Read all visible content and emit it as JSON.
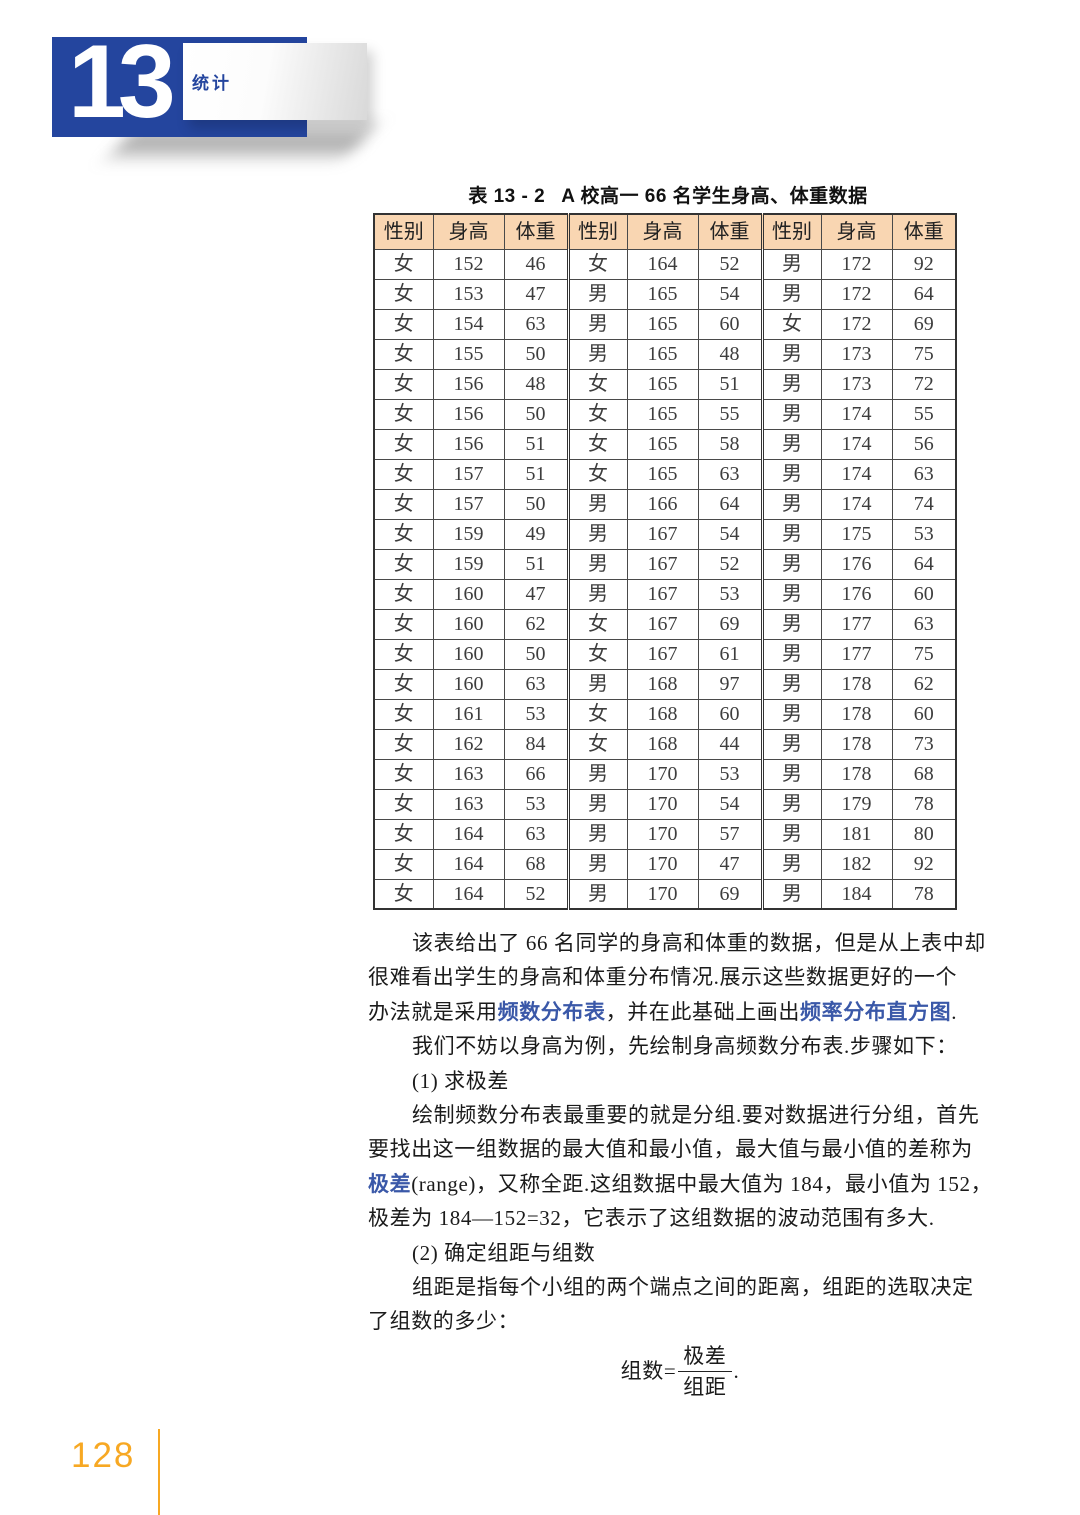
{
  "page": {
    "chapter_number": "13",
    "chapter_title": "统计",
    "page_number": "128"
  },
  "colors": {
    "banner_blue": "#24459e",
    "keyword_blue": "#3a58a8",
    "table_header_peach": "#f9d6b2",
    "footer_orange": "#f7a823"
  },
  "table": {
    "caption_label": "表 13 - 2",
    "caption_title": "A 校高一 66 名学生身高、体重数据",
    "column_headers": [
      "性别",
      "身高",
      "体重",
      "性别",
      "身高",
      "体重",
      "性别",
      "身高",
      "体重"
    ],
    "rows": [
      [
        "女",
        "152",
        "46",
        "女",
        "164",
        "52",
        "男",
        "172",
        "92"
      ],
      [
        "女",
        "153",
        "47",
        "男",
        "165",
        "54",
        "男",
        "172",
        "64"
      ],
      [
        "女",
        "154",
        "63",
        "男",
        "165",
        "60",
        "女",
        "172",
        "69"
      ],
      [
        "女",
        "155",
        "50",
        "男",
        "165",
        "48",
        "男",
        "173",
        "75"
      ],
      [
        "女",
        "156",
        "48",
        "女",
        "165",
        "51",
        "男",
        "173",
        "72"
      ],
      [
        "女",
        "156",
        "50",
        "女",
        "165",
        "55",
        "男",
        "174",
        "55"
      ],
      [
        "女",
        "156",
        "51",
        "女",
        "165",
        "58",
        "男",
        "174",
        "56"
      ],
      [
        "女",
        "157",
        "51",
        "女",
        "165",
        "63",
        "男",
        "174",
        "63"
      ],
      [
        "女",
        "157",
        "50",
        "男",
        "166",
        "64",
        "男",
        "174",
        "74"
      ],
      [
        "女",
        "159",
        "49",
        "男",
        "167",
        "54",
        "男",
        "175",
        "53"
      ],
      [
        "女",
        "159",
        "51",
        "男",
        "167",
        "52",
        "男",
        "176",
        "64"
      ],
      [
        "女",
        "160",
        "47",
        "男",
        "167",
        "53",
        "男",
        "176",
        "60"
      ],
      [
        "女",
        "160",
        "62",
        "女",
        "167",
        "69",
        "男",
        "177",
        "63"
      ],
      [
        "女",
        "160",
        "50",
        "女",
        "167",
        "61",
        "男",
        "177",
        "75"
      ],
      [
        "女",
        "160",
        "63",
        "男",
        "168",
        "97",
        "男",
        "178",
        "62"
      ],
      [
        "女",
        "161",
        "53",
        "女",
        "168",
        "60",
        "男",
        "178",
        "60"
      ],
      [
        "女",
        "162",
        "84",
        "女",
        "168",
        "44",
        "男",
        "178",
        "73"
      ],
      [
        "女",
        "163",
        "66",
        "男",
        "170",
        "53",
        "男",
        "178",
        "68"
      ],
      [
        "女",
        "163",
        "53",
        "男",
        "170",
        "54",
        "男",
        "179",
        "78"
      ],
      [
        "女",
        "164",
        "63",
        "男",
        "170",
        "57",
        "男",
        "181",
        "80"
      ],
      [
        "女",
        "164",
        "68",
        "男",
        "170",
        "47",
        "男",
        "182",
        "92"
      ],
      [
        "女",
        "164",
        "52",
        "男",
        "170",
        "69",
        "男",
        "184",
        "78"
      ]
    ]
  },
  "content": {
    "lines": [
      {
        "indent": true,
        "segments": [
          {
            "text": "该表给出了 66 名同学的身高和体重的数据，但是从上表中却"
          }
        ]
      },
      {
        "indent": false,
        "segments": [
          {
            "text": "很难看出学生的身高和体重分布情况.展示这些数据更好的一个"
          }
        ]
      },
      {
        "indent": false,
        "segments": [
          {
            "text": "办法就是采用"
          },
          {
            "text": "频数分布表",
            "blue": true
          },
          {
            "text": "，并在此基础上画出"
          },
          {
            "text": "频率分布直方图",
            "blue": true
          },
          {
            "text": "."
          }
        ]
      },
      {
        "indent": true,
        "segments": [
          {
            "text": "我们不妨以身高为例，先绘制身高频数分布表.步骤如下："
          }
        ]
      },
      {
        "indent": true,
        "segments": [
          {
            "text": "(1) 求极差"
          }
        ]
      },
      {
        "indent": true,
        "segments": [
          {
            "text": "绘制频数分布表最重要的就是分组.要对数据进行分组，首先"
          }
        ]
      },
      {
        "indent": false,
        "segments": [
          {
            "text": "要找出这一组数据的最大值和最小值，最大值与最小值的差称为"
          }
        ]
      },
      {
        "indent": false,
        "segments": [
          {
            "text": "极差",
            "blue": true
          },
          {
            "text": "(range)，又称全距.这组数据中最大值为 184，最小值为 152，"
          }
        ]
      },
      {
        "indent": false,
        "segments": [
          {
            "text": "极差为 184—152=32，它表示了这组数据的波动范围有多大."
          }
        ]
      },
      {
        "indent": true,
        "segments": [
          {
            "text": "(2) 确定组距与组数"
          }
        ]
      },
      {
        "indent": true,
        "segments": [
          {
            "text": "组距是指每个小组的两个端点之间的距离，组距的选取决定"
          }
        ]
      },
      {
        "indent": false,
        "segments": [
          {
            "text": "了组数的多少："
          }
        ]
      }
    ]
  },
  "formula": {
    "lhs": "组数=",
    "numerator": "极差",
    "denominator": "组距",
    "period": "."
  }
}
